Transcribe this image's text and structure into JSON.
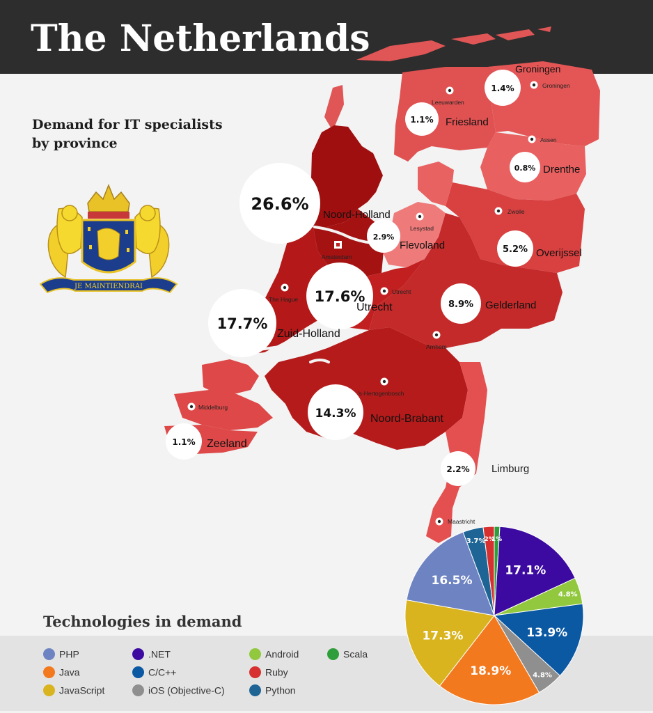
{
  "title": "The Netherlands",
  "subtitle": "Demand for IT specialists by province",
  "tech_title": "Technologies in demand",
  "emblem": {
    "motto": "JE MAINTIENDRAI"
  },
  "colors": {
    "dark": "#a30e0e",
    "mid": "#cc3232",
    "light": "#e05050",
    "lightest": "#ea6060"
  },
  "provinces": [
    {
      "name": "Groningen",
      "share": "1.4%",
      "value": 1.4
    },
    {
      "name": "Friesland",
      "share": "1.1%",
      "value": 1.1
    },
    {
      "name": "Drenthe",
      "share": "0.8%",
      "value": 0.8
    },
    {
      "name": "Noord-Holland",
      "share": "26.6%",
      "value": 26.6
    },
    {
      "name": "Flevoland",
      "share": "2.9%",
      "value": 2.9
    },
    {
      "name": "Overijssel",
      "share": "5.2%",
      "value": 5.2
    },
    {
      "name": "Utrecht",
      "share": "17.6%",
      "value": 17.6
    },
    {
      "name": "Gelderland",
      "share": "8.9%",
      "value": 8.9
    },
    {
      "name": "Zuid-Holland",
      "share": "17.7%",
      "value": 17.7
    },
    {
      "name": "Noord-Brabant",
      "share": "14.3%",
      "value": 14.3
    },
    {
      "name": "Zeeland",
      "share": "1.1%",
      "value": 1.1
    },
    {
      "name": "Limburg",
      "share": "2.2%",
      "value": 2.2
    }
  ],
  "cities": [
    {
      "name": "Groningen"
    },
    {
      "name": "Leeuwarden"
    },
    {
      "name": "Assen"
    },
    {
      "name": "Zwolle"
    },
    {
      "name": "Lesystad"
    },
    {
      "name": "Amsterdam"
    },
    {
      "name": "Utrecht"
    },
    {
      "name": "The Hague"
    },
    {
      "name": "Arnhem"
    },
    {
      "name": "'s-Hertogenbosch"
    },
    {
      "name": "Middelburg"
    },
    {
      "name": "Maastricht"
    }
  ],
  "chart_data": {
    "type": "pie",
    "slices": [
      {
        "name": "Scala",
        "value": 1,
        "label": "1%",
        "color": "#2e9e3a"
      },
      {
        "name": ".NET",
        "value": 17.1,
        "label": "17.1%",
        "color": "#3c0aa0"
      },
      {
        "name": "Android",
        "value": 4.8,
        "label": "4.8%",
        "color": "#92c83e"
      },
      {
        "name": "C/C++",
        "value": 13.9,
        "label": "13.9%",
        "color": "#0b58a3"
      },
      {
        "name": "iOS (Objective-C)",
        "value": 4.8,
        "label": "4.8%",
        "color": "#8f8f8f"
      },
      {
        "name": "Java",
        "value": 18.9,
        "label": "18.9%",
        "color": "#f3791f"
      },
      {
        "name": "JavaScript",
        "value": 17.3,
        "label": "17.3%",
        "color": "#d9b41f"
      },
      {
        "name": "PHP",
        "value": 16.5,
        "label": "16.5%",
        "color": "#6e83c2"
      },
      {
        "name": "Python",
        "value": 3.7,
        "label": "3.7%",
        "color": "#1e6595"
      },
      {
        "name": "Ruby",
        "value": 2,
        "label": "2%",
        "color": "#d63030"
      }
    ],
    "legend": [
      {
        "name": "PHP",
        "color": "#6e83c2"
      },
      {
        "name": "Java",
        "color": "#f3791f"
      },
      {
        "name": "JavaScript",
        "color": "#d9b41f"
      },
      {
        "name": ".NET",
        "color": "#3c0aa0"
      },
      {
        "name": "C/C++",
        "color": "#0b58a3"
      },
      {
        "name": "iOS (Objective-C)",
        "color": "#8f8f8f"
      },
      {
        "name": "Android",
        "color": "#92c83e"
      },
      {
        "name": "Ruby",
        "color": "#d63030"
      },
      {
        "name": "Python",
        "color": "#1e6595"
      },
      {
        "name": "Scala",
        "color": "#2e9e3a"
      }
    ]
  }
}
